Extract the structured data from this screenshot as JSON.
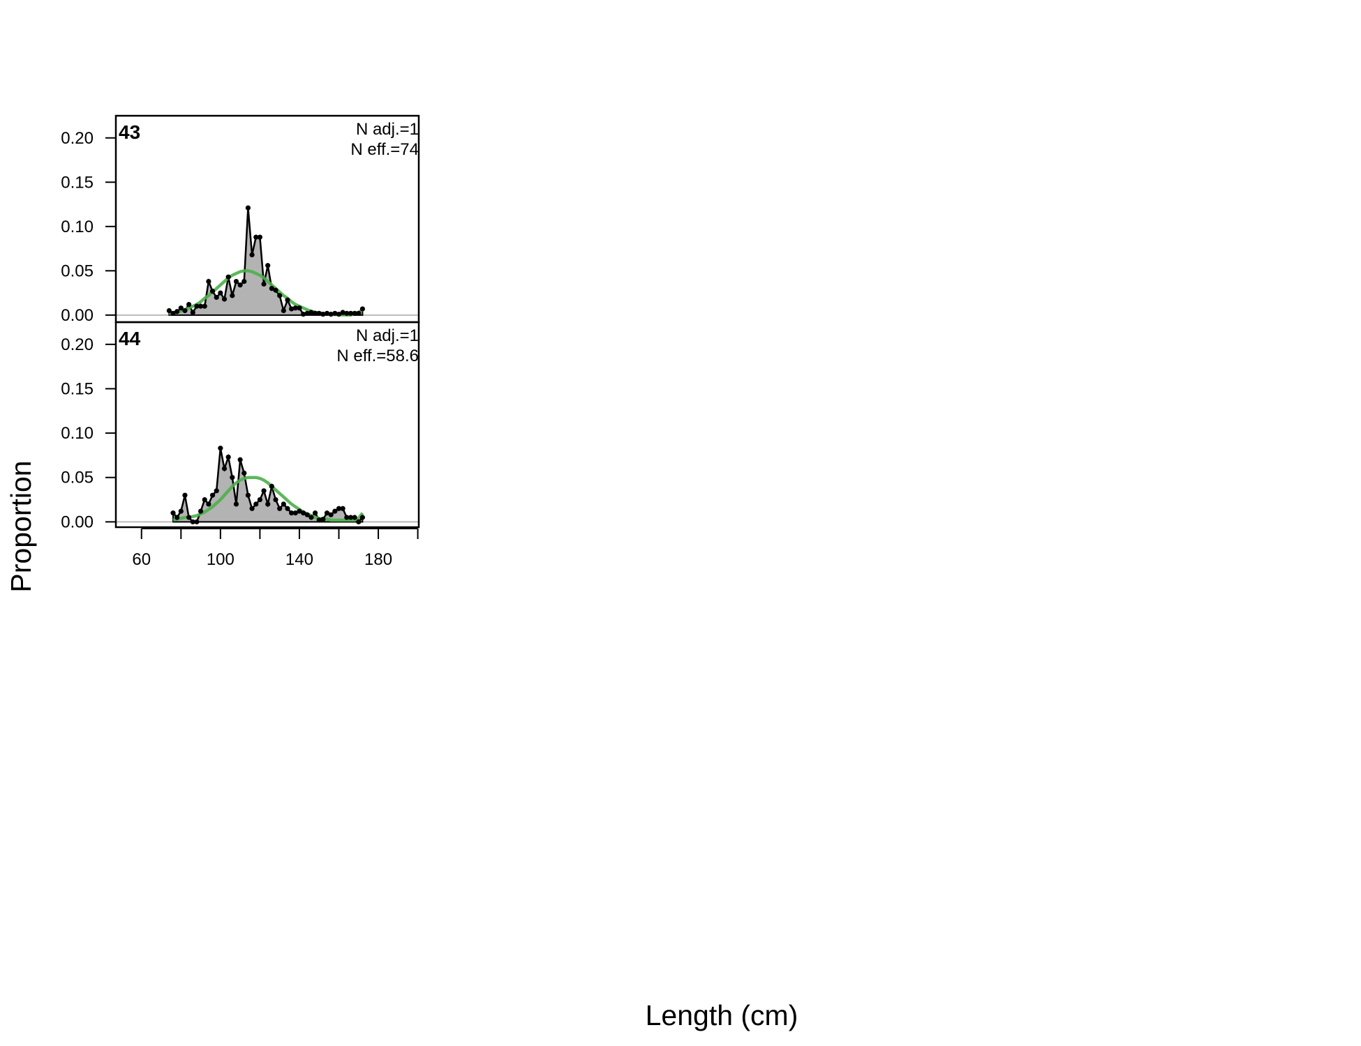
{
  "xlabel": "Length (cm)",
  "ylabel": "Proportion",
  "chart_data": [
    {
      "type": "area",
      "panel_label": "43",
      "annotations": [
        "N adj.=1",
        "N eff.=74"
      ],
      "x": [
        74,
        76,
        78,
        80,
        82,
        84,
        86,
        88,
        90,
        92,
        94,
        96,
        98,
        100,
        102,
        104,
        106,
        108,
        110,
        112,
        114,
        116,
        118,
        120,
        122,
        124,
        126,
        128,
        130,
        132,
        134,
        136,
        138,
        140,
        142,
        144,
        146,
        148,
        150,
        152,
        154,
        156,
        158,
        160,
        162,
        164,
        166,
        168,
        170,
        172
      ],
      "series": [
        {
          "color": "#000000",
          "fill": "#b3b3b3",
          "values": [
            0.005,
            0.002,
            0.004,
            0.008,
            0.005,
            0.012,
            0.003,
            0.01,
            0.01,
            0.01,
            0.038,
            0.027,
            0.02,
            0.025,
            0.018,
            0.043,
            0.022,
            0.038,
            0.034,
            0.038,
            0.121,
            0.068,
            0.088,
            0.088,
            0.035,
            0.056,
            0.03,
            0.028,
            0.022,
            0.005,
            0.017,
            0.007,
            0.008,
            0.008,
            0.001,
            0.002,
            0.003,
            0.002,
            0.002,
            0.001,
            0.002,
            0.001,
            0.002,
            0.001,
            0.003,
            0.002,
            0.002,
            0.002,
            0.002,
            0.007
          ]
        },
        {
          "color": "#4daf4a",
          "values": [
            0.0017,
            0.0024,
            0.0033,
            0.0044,
            0.006,
            0.008,
            0.01,
            0.012,
            0.015,
            0.019,
            0.022,
            0.026,
            0.03,
            0.034,
            0.038,
            0.042,
            0.045,
            0.047,
            0.049,
            0.05,
            0.05,
            0.049,
            0.047,
            0.045,
            0.042,
            0.038,
            0.034,
            0.03,
            0.026,
            0.022,
            0.019,
            0.015,
            0.012,
            0.01,
            0.008,
            0.006,
            0.0044,
            0.0033,
            0.0024,
            0.0017,
            0.0012,
            0.0008,
            0.0006,
            0.0004,
            0.0003,
            0.0002,
            0.0001,
            0.002,
            0.003,
            0.006
          ]
        }
      ],
      "xlim": [
        47,
        200.5
      ],
      "ylim": [
        -0.008,
        0.225
      ],
      "yticks": [
        {
          "value": 0,
          "label": "0.00"
        },
        0.05,
        {
          "value": 0.1,
          "label": "0.10"
        },
        0.15,
        {
          "value": 0.2,
          "label": "0.20"
        }
      ]
    },
    {
      "type": "area",
      "panel_label": "44",
      "annotations": [
        "N adj.=1",
        "N eff.=58.6"
      ],
      "x": [
        76,
        78,
        80,
        82,
        84,
        86,
        88,
        90,
        92,
        94,
        96,
        98,
        100,
        102,
        104,
        106,
        108,
        110,
        112,
        114,
        116,
        118,
        120,
        122,
        124,
        126,
        128,
        130,
        132,
        134,
        136,
        138,
        140,
        142,
        144,
        146,
        148,
        150,
        152,
        154,
        156,
        158,
        160,
        162,
        164,
        166,
        168,
        170,
        172
      ],
      "series": [
        {
          "color": "#000000",
          "fill": "#b3b3b3",
          "values": [
            0.01,
            0.005,
            0.012,
            0.03,
            0.005,
            0,
            0,
            0.012,
            0.025,
            0.02,
            0.03,
            0.035,
            0.083,
            0.06,
            0.073,
            0.05,
            0.02,
            0.07,
            0.055,
            0.03,
            0.015,
            0.02,
            0.025,
            0.035,
            0.02,
            0.04,
            0.025,
            0.015,
            0.02,
            0.015,
            0.01,
            0.01,
            0.012,
            0.01,
            0.008,
            0.005,
            0.01,
            0.002,
            0.003,
            0.01,
            0.008,
            0.012,
            0.015,
            0.015,
            0.005,
            0.005,
            0.005,
            0,
            0.005
          ]
        },
        {
          "color": "#4daf4a",
          "values": [
            0.002,
            0.003,
            0.004,
            0.005,
            0.005,
            0.006,
            0.007,
            0.009,
            0.011,
            0.014,
            0.017,
            0.021,
            0.025,
            0.03,
            0.035,
            0.04,
            0.044,
            0.047,
            0.049,
            0.05,
            0.05,
            0.05,
            0.049,
            0.047,
            0.044,
            0.04,
            0.036,
            0.032,
            0.028,
            0.024,
            0.02,
            0.017,
            0.014,
            0.011,
            0.009,
            0.007,
            0.005,
            0.004,
            0.003,
            0.003,
            0.002,
            0.002,
            0.002,
            0.002,
            0.002,
            0.002,
            0.002,
            0.004,
            0.01
          ]
        }
      ],
      "xlim": [
        47,
        200.5
      ],
      "ylim": [
        -0.006,
        0.225
      ],
      "yticks": [
        {
          "value": 0,
          "label": "0.00"
        },
        0.05,
        {
          "value": 0.1,
          "label": "0.10"
        },
        0.15,
        {
          "value": 0.2,
          "label": "0.20"
        }
      ],
      "xticks": [
        60,
        100,
        140,
        180
      ],
      "xminor_ticks": [
        80,
        120,
        160,
        200
      ]
    }
  ]
}
